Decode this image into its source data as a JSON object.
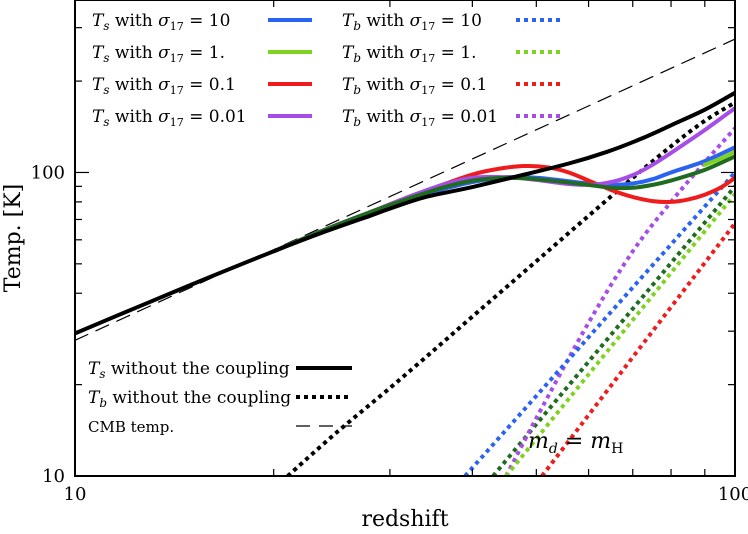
{
  "chart_data": {
    "type": "line",
    "xscale": "log",
    "yscale": "log",
    "xlabel": "redshift",
    "ylabel": "Temp. [K]",
    "xlim": [
      10,
      100
    ],
    "ylim": [
      10,
      370
    ],
    "xticks": [
      10,
      100
    ],
    "xtick_labels": [
      "10",
      "100"
    ],
    "yticks": [
      10,
      100
    ],
    "ytick_labels": [
      "10",
      "100"
    ],
    "annotation": "m_d = m_H",
    "annotation_text": {
      "lhs": "m",
      "lhs_sub": "d",
      "eq": " = ",
      "rhs": "m",
      "rhs_sub": "H"
    },
    "series": [
      {
        "key": "cmb",
        "name": "CMB temp.",
        "color": "#000000",
        "style": "dashed",
        "x": [
          10,
          100
        ],
        "y": [
          28.0,
          275.0
        ]
      },
      {
        "key": "ts_nc",
        "name": "T_s without the coupling",
        "color": "#000000",
        "style": "solid",
        "x": [
          10,
          13,
          16,
          20,
          24,
          28,
          30,
          34,
          40,
          48,
          56,
          64,
          72,
          80,
          90,
          100
        ],
        "y": [
          29.5,
          37.5,
          45.2,
          55.0,
          64.0,
          72.0,
          76.0,
          83.0,
          89.5,
          98.5,
          107.0,
          117.0,
          129.0,
          143.0,
          161.0,
          183.0
        ]
      },
      {
        "key": "tb_nc",
        "name": "T_b without the coupling",
        "color": "#000000",
        "style": "dotted",
        "x": [
          21,
          25,
          30,
          35,
          40,
          50,
          60,
          70,
          80,
          90,
          100
        ],
        "y": [
          10.0,
          14.0,
          19.5,
          26.0,
          33.5,
          51.0,
          72.0,
          96.0,
          122.0,
          148.0,
          170.0
        ]
      },
      {
        "key": "ts10",
        "name": "T_s with σ17 = 10",
        "color": "#2a63f0",
        "style": "solid",
        "x": [
          20,
          24,
          28,
          32,
          36,
          40,
          45,
          50,
          55,
          60,
          65,
          70,
          75,
          80,
          90,
          100
        ],
        "y": [
          55.0,
          65.0,
          74.0,
          82.0,
          88.0,
          93.0,
          96.5,
          96.0,
          94.0,
          92.0,
          91.0,
          92.0,
          95.0,
          100.0,
          109.0,
          121.0
        ]
      },
      {
        "key": "ts1",
        "name": "T_s with σ17 = 1.",
        "color": "#1f6b1f",
        "style": "solid",
        "x": [
          20,
          24,
          28,
          32,
          36,
          40,
          45,
          50,
          55,
          60,
          65,
          70,
          75,
          80,
          90,
          100
        ],
        "y": [
          55.0,
          65.0,
          74.0,
          82.0,
          89.0,
          94.0,
          96.0,
          95.0,
          93.0,
          91.0,
          89.0,
          89.0,
          91.0,
          94.0,
          102.0,
          113.0
        ]
      },
      {
        "key": "ts01",
        "name": "T_s with σ17 = 0.1",
        "color": "#ee1c1c",
        "style": "solid",
        "x": [
          20,
          24,
          28,
          32,
          36,
          40,
          44,
          48,
          52,
          56,
          60,
          65,
          70,
          75,
          80,
          85,
          90,
          95,
          100
        ],
        "y": [
          55.0,
          65.0,
          74.0,
          83.0,
          91.0,
          98.5,
          103.0,
          105.0,
          104.0,
          100.0,
          94.0,
          87.5,
          83.0,
          80.5,
          80.0,
          81.5,
          84.5,
          89.0,
          96.0
        ]
      },
      {
        "key": "ts001",
        "name": "T_s with σ17 = 0.01",
        "color": "#a64de8",
        "style": "solid",
        "x": [
          20,
          24,
          28,
          32,
          36,
          40,
          45,
          50,
          55,
          60,
          65,
          70,
          75,
          80,
          90,
          100
        ],
        "y": [
          55.0,
          65.0,
          74.0,
          83.0,
          91.0,
          96.0,
          96.5,
          94.5,
          92.0,
          91.0,
          93.0,
          98.0,
          106.0,
          116.0,
          138.0,
          163.0
        ]
      },
      {
        "key": "tb10",
        "name": "T_b with σ17 = 10",
        "color": "#2a63f0",
        "style": "dotted",
        "x": [
          39,
          100
        ],
        "y": [
          10.0,
          100.0
        ]
      },
      {
        "key": "tb1",
        "name": "T_b with σ17 = 1.",
        "color": "#7ed321",
        "style": "dotted",
        "x": [
          45,
          100
        ],
        "y": [
          10.0,
          85.0
        ]
      },
      {
        "key": "tb01",
        "name": "T_b with σ17 = 0.1",
        "color": "#ee1c1c",
        "style": "dotted",
        "x": [
          51,
          100
        ],
        "y": [
          10.0,
          68.0
        ]
      },
      {
        "key": "tb001",
        "name": "T_b with σ17 = 0.01",
        "color": "#a64de8",
        "style": "dotted",
        "x": [
          45,
          50,
          60,
          70,
          80,
          90,
          100
        ],
        "y": [
          10.0,
          15.5,
          32.0,
          55.0,
          80.0,
          108.0,
          140.0
        ]
      }
    ],
    "extra_series": [
      {
        "key": "ts1_light",
        "color": "#7ed321",
        "style": "solid",
        "note": "T_s σ17 = 1. segment shown in light green near the right edge",
        "x": [
          90,
          95,
          100
        ],
        "y": [
          106.0,
          111.0,
          117.0
        ]
      },
      {
        "key": "tb1_dark",
        "color": "#1f6b1f",
        "style": "dotted",
        "note": "dark green dotted line parallel to T_b σ17 = 1.",
        "x": [
          43,
          100
        ],
        "y": [
          10.0,
          90.0
        ]
      }
    ],
    "legend_top": [
      {
        "key": "ts10",
        "parts": {
          "var": "T",
          "sub": "s",
          "mid": " with ",
          "sig": "σ",
          "sigsub": "17",
          "val": "  = 10"
        }
      },
      {
        "key": "tb10",
        "parts": {
          "var": "T",
          "sub": "b",
          "mid": " with ",
          "sig": "σ",
          "sigsub": "17",
          "val": "  = 10"
        }
      },
      {
        "key": "ts1",
        "parts": {
          "var": "T",
          "sub": "s",
          "mid": " with ",
          "sig": "σ",
          "sigsub": "17",
          "val": "  = 1."
        }
      },
      {
        "key": "tb1",
        "parts": {
          "var": "T",
          "sub": "b",
          "mid": " with ",
          "sig": "σ",
          "sigsub": "17",
          "val": "  = 1."
        }
      },
      {
        "key": "ts01",
        "parts": {
          "var": "T",
          "sub": "s",
          "mid": " with ",
          "sig": "σ",
          "sigsub": "17",
          "val": "  = 0.1"
        }
      },
      {
        "key": "tb01",
        "parts": {
          "var": "T",
          "sub": "b",
          "mid": " with ",
          "sig": "σ",
          "sigsub": "17",
          "val": "  = 0.1"
        }
      },
      {
        "key": "ts001",
        "parts": {
          "var": "T",
          "sub": "s",
          "mid": " with ",
          "sig": "σ",
          "sigsub": "17",
          "val": "  = 0.01"
        }
      },
      {
        "key": "tb001",
        "parts": {
          "var": "T",
          "sub": "b",
          "mid": " with ",
          "sig": "σ",
          "sigsub": "17",
          "val": "  = 0.01"
        }
      }
    ],
    "legend_top_colors": {
      "ts10": "#2a63f0",
      "ts1": "#7ed321",
      "ts01": "#ee1c1c",
      "ts001": "#a64de8",
      "tb10": "#2a63f0",
      "tb1": "#7ed321",
      "tb01": "#ee1c1c",
      "tb001": "#a64de8"
    },
    "legend_bottom": [
      {
        "key": "ts_nc",
        "parts": {
          "var": "T",
          "sub": "s",
          "rest": " without the coupling"
        }
      },
      {
        "key": "tb_nc",
        "parts": {
          "var": "T",
          "sub": "b",
          "rest": " without the coupling"
        }
      },
      {
        "key": "cmb",
        "parts": {
          "var": "",
          "sub": "",
          "rest": "CMB temp."
        }
      }
    ]
  }
}
